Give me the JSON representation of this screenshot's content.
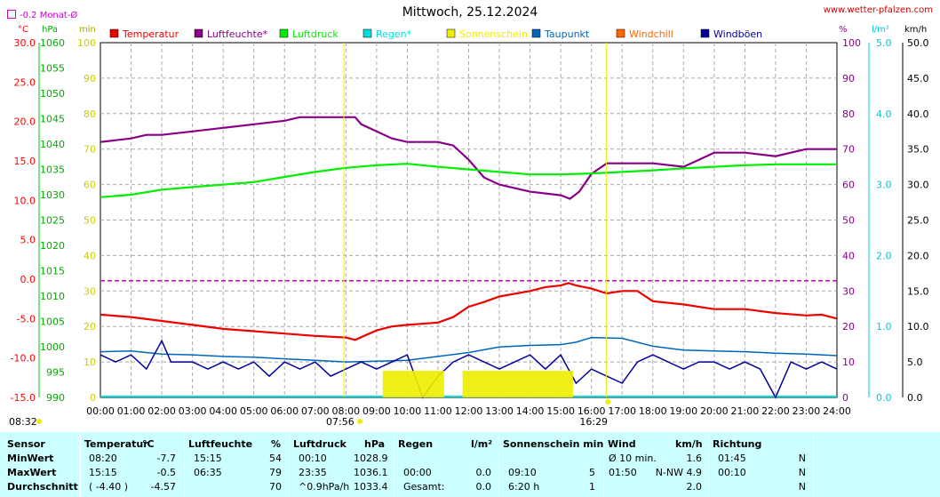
{
  "title": "Mittwoch, 25.12.2024",
  "site": "www.wetter-pfalzen.com",
  "monat_label": "-0.2 Monat-Ø",
  "unit_labels": {
    "celsius": "°C",
    "hpa": "hPa",
    "min": "min",
    "pct": "%",
    "lm2": "l/m²",
    "kmh": "km/h"
  },
  "chart_data": {
    "type": "line",
    "legend": [
      {
        "name": "Temperatur",
        "color": "#ee0000"
      },
      {
        "name": "Luftfeuchte*",
        "color": "#880088"
      },
      {
        "name": "Luftdruck",
        "color": "#00ee00"
      },
      {
        "name": "Regen*",
        "color": "#00dddd"
      },
      {
        "name": "Sonnenschein",
        "color": "#eeee00"
      },
      {
        "name": "Taupunkt",
        "color": "#0066bb"
      },
      {
        "name": "Windchill",
        "color": "#ff6600"
      },
      {
        "name": "Windböen",
        "color": "#000099"
      }
    ],
    "x_ticks": [
      "00:00",
      "01:00",
      "02:00",
      "03:00",
      "04:00",
      "05:00",
      "06:00",
      "07:00",
      "08:00",
      "09:00",
      "10:00",
      "11:00",
      "12:00",
      "13:00",
      "14:00",
      "15:00",
      "16:00",
      "17:00",
      "18:00",
      "19:00",
      "20:00",
      "21:00",
      "22:00",
      "23:00",
      "24:00"
    ],
    "sunrise": "07:56",
    "sunset": "16:29",
    "axes": {
      "temp": {
        "range": [
          -15,
          30
        ],
        "ticks": [
          "30.0",
          "25.0",
          "20.0",
          "15.0",
          "10.0",
          "5.0",
          "0.0",
          "-5.0",
          "-10.0",
          "-15.0"
        ]
      },
      "press": {
        "range": [
          990,
          1060
        ],
        "ticks": [
          "1060",
          "1055",
          "1050",
          "1045",
          "1040",
          "1035",
          "1030",
          "1025",
          "1020",
          "1015",
          "1010",
          "1005",
          "1000",
          "995",
          "990"
        ]
      },
      "minutes": {
        "range": [
          0,
          100
        ],
        "ticks": [
          "100",
          "90",
          "80",
          "70",
          "60",
          "50",
          "40",
          "30",
          "20",
          "10",
          "0"
        ]
      },
      "pct_right": {
        "range": [
          0,
          100
        ],
        "ticks": [
          "100",
          "90",
          "80",
          "70",
          "60",
          "50",
          "40",
          "30",
          "20",
          "10",
          "0"
        ]
      },
      "rain": {
        "range": [
          0,
          5
        ],
        "ticks": [
          "5.0",
          "4.0",
          "3.0",
          "2.0",
          "1.0",
          "0.0"
        ]
      },
      "wind": {
        "range": [
          0,
          50
        ],
        "ticks": [
          "50.0",
          "45.0",
          "40.0",
          "35.0",
          "30.0",
          "25.0",
          "20.0",
          "15.0",
          "10.0",
          "5.0",
          "0.0"
        ]
      }
    },
    "monat_avg_temp": -0.2,
    "series": [
      {
        "name": "Luftfeuchte*",
        "axis": "pct",
        "points": [
          [
            0,
            72
          ],
          [
            1,
            73
          ],
          [
            1.5,
            74
          ],
          [
            2,
            74
          ],
          [
            3,
            75
          ],
          [
            4,
            76
          ],
          [
            5,
            77
          ],
          [
            6,
            78
          ],
          [
            6.5,
            79
          ],
          [
            7,
            79
          ],
          [
            7.5,
            79
          ],
          [
            8,
            79
          ],
          [
            8.3,
            79
          ],
          [
            8.5,
            77
          ],
          [
            9,
            75
          ],
          [
            9.5,
            73
          ],
          [
            10,
            72
          ],
          [
            11,
            72
          ],
          [
            11.5,
            71
          ],
          [
            12,
            67
          ],
          [
            12.5,
            62
          ],
          [
            13,
            60
          ],
          [
            13.5,
            59
          ],
          [
            14,
            58
          ],
          [
            15,
            57
          ],
          [
            15.3,
            56
          ],
          [
            15.6,
            58
          ],
          [
            16,
            63
          ],
          [
            16.5,
            66
          ],
          [
            17,
            66
          ],
          [
            18,
            66
          ],
          [
            19,
            65
          ],
          [
            19.5,
            67
          ],
          [
            20,
            69
          ],
          [
            21,
            69
          ],
          [
            22,
            68
          ],
          [
            22.5,
            69
          ],
          [
            23,
            70
          ],
          [
            23.5,
            70
          ],
          [
            24,
            70
          ]
        ]
      },
      {
        "name": "Luftdruck",
        "axis": "press",
        "points": [
          [
            0,
            1029.5
          ],
          [
            1,
            1030
          ],
          [
            2,
            1031
          ],
          [
            3,
            1031.5
          ],
          [
            4,
            1032
          ],
          [
            5,
            1032.5
          ],
          [
            6,
            1033.5
          ],
          [
            7,
            1034.5
          ],
          [
            8,
            1035.3
          ],
          [
            9,
            1035.8
          ],
          [
            10,
            1036.1
          ],
          [
            11,
            1035.5
          ],
          [
            12,
            1035
          ],
          [
            13,
            1034.5
          ],
          [
            14,
            1034
          ],
          [
            15,
            1034
          ],
          [
            16,
            1034.2
          ],
          [
            17,
            1034.5
          ],
          [
            18,
            1034.8
          ],
          [
            19,
            1035.2
          ],
          [
            20,
            1035.5
          ],
          [
            21,
            1035.8
          ],
          [
            22,
            1036
          ],
          [
            23,
            1036
          ],
          [
            24,
            1036
          ]
        ]
      },
      {
        "name": "Temperatur",
        "axis": "temp",
        "points": [
          [
            0,
            -4.5
          ],
          [
            1,
            -4.8
          ],
          [
            2,
            -5.3
          ],
          [
            3,
            -5.8
          ],
          [
            4,
            -6.3
          ],
          [
            5,
            -6.6
          ],
          [
            6,
            -6.9
          ],
          [
            7,
            -7.2
          ],
          [
            8,
            -7.4
          ],
          [
            8.3,
            -7.7
          ],
          [
            9,
            -6.5
          ],
          [
            9.5,
            -6.0
          ],
          [
            10,
            -5.8
          ],
          [
            11,
            -5.5
          ],
          [
            11.5,
            -4.8
          ],
          [
            12,
            -3.5
          ],
          [
            12.5,
            -2.9
          ],
          [
            13,
            -2.2
          ],
          [
            14,
            -1.5
          ],
          [
            14.5,
            -1.0
          ],
          [
            15,
            -0.8
          ],
          [
            15.25,
            -0.5
          ],
          [
            15.5,
            -0.8
          ],
          [
            16,
            -1.2
          ],
          [
            16.5,
            -1.8
          ],
          [
            17,
            -1.5
          ],
          [
            17.5,
            -1.5
          ],
          [
            18,
            -2.8
          ],
          [
            19,
            -3.2
          ],
          [
            20,
            -3.8
          ],
          [
            21,
            -3.8
          ],
          [
            22,
            -4.3
          ],
          [
            23,
            -4.6
          ],
          [
            23.5,
            -4.5
          ],
          [
            24,
            -5.0
          ]
        ]
      },
      {
        "name": "Taupunkt",
        "axis": "temp",
        "points": [
          [
            0,
            -9.2
          ],
          [
            1,
            -9.1
          ],
          [
            2,
            -9.5
          ],
          [
            3,
            -9.6
          ],
          [
            4,
            -9.8
          ],
          [
            5,
            -9.9
          ],
          [
            6,
            -10.1
          ],
          [
            7,
            -10.3
          ],
          [
            8,
            -10.5
          ],
          [
            9,
            -10.4
          ],
          [
            10,
            -10.3
          ],
          [
            11,
            -9.8
          ],
          [
            12,
            -9.3
          ],
          [
            13,
            -8.6
          ],
          [
            14,
            -8.4
          ],
          [
            15,
            -8.3
          ],
          [
            15.5,
            -8.0
          ],
          [
            16,
            -7.4
          ],
          [
            17,
            -7.5
          ],
          [
            18,
            -8.5
          ],
          [
            19,
            -9.0
          ],
          [
            20,
            -9.1
          ],
          [
            21,
            -9.2
          ],
          [
            22,
            -9.4
          ],
          [
            23,
            -9.5
          ],
          [
            24,
            -9.7
          ]
        ]
      },
      {
        "name": "Windböen",
        "axis": "wind",
        "points": [
          [
            0,
            6
          ],
          [
            0.5,
            5
          ],
          [
            1,
            6
          ],
          [
            1.5,
            4
          ],
          [
            2,
            8
          ],
          [
            2.3,
            5
          ],
          [
            3,
            5
          ],
          [
            3.5,
            4
          ],
          [
            4,
            5
          ],
          [
            4.5,
            4
          ],
          [
            5,
            5
          ],
          [
            5.5,
            3
          ],
          [
            6,
            5
          ],
          [
            6.5,
            4
          ],
          [
            7,
            5
          ],
          [
            7.5,
            3
          ],
          [
            8,
            4
          ],
          [
            8.5,
            5
          ],
          [
            9,
            4
          ],
          [
            9.5,
            5
          ],
          [
            10,
            6
          ],
          [
            10.5,
            0
          ],
          [
            11,
            3
          ],
          [
            11.5,
            5
          ],
          [
            12,
            6
          ],
          [
            12.5,
            5
          ],
          [
            13,
            4
          ],
          [
            13.5,
            5
          ],
          [
            14,
            6
          ],
          [
            14.5,
            4
          ],
          [
            15,
            6
          ],
          [
            15.5,
            2
          ],
          [
            16,
            4
          ],
          [
            16.5,
            3
          ],
          [
            17,
            2
          ],
          [
            17.5,
            5
          ],
          [
            18,
            6
          ],
          [
            18.5,
            5
          ],
          [
            19,
            4
          ],
          [
            19.5,
            5
          ],
          [
            20,
            5
          ],
          [
            20.5,
            4
          ],
          [
            21,
            5
          ],
          [
            21.5,
            4
          ],
          [
            22,
            0
          ],
          [
            22.5,
            5
          ],
          [
            23,
            4
          ],
          [
            23.5,
            5
          ],
          [
            24,
            4
          ]
        ]
      },
      {
        "name": "Sonnenschein",
        "axis": "minutes",
        "blocks": [
          [
            9.2,
            11.2,
            5
          ],
          [
            11.8,
            15.4,
            5
          ]
        ]
      }
    ]
  },
  "table": {
    "headers": [
      "Sensor",
      "Temperatur",
      "°C",
      "Luftfeuchte",
      "%",
      "Luftdruck",
      "hPa",
      "Regen",
      "l/m²",
      "Sonnenschein min",
      "Wind",
      "km/h",
      "Richtung"
    ],
    "rows": [
      {
        "label": "MinWert",
        "temp_time": "08:20",
        "temp_val": "-7.7",
        "hum_time": "15:15",
        "hum_val": "54",
        "press_time": "00:10",
        "press_val": "1028.9",
        "rain_time": "",
        "rain_val": "",
        "sun_time": "",
        "sun_val": "",
        "wind_time": "Ø 10 min.",
        "wind_val": "1.6",
        "dir_time": "01:45",
        "dir_val": "N"
      },
      {
        "label": "MaxWert",
        "temp_time": "15:15",
        "temp_val": "-0.5",
        "hum_time": "06:35",
        "hum_val": "79",
        "press_time": "23:35",
        "press_val": "1036.1",
        "rain_time": "00:00",
        "rain_val": "0.0",
        "sun_time": "09:10",
        "sun_val": "5",
        "wind_time": "01:50",
        "wind_val": "N-NW 4.9",
        "dir_time": "00:10",
        "dir_val": "N"
      },
      {
        "label": "Durchschnitt",
        "temp_time": "( -4.40 )",
        "temp_val": "-4.57",
        "hum_time": "",
        "hum_val": "70",
        "press_time": "^0.9hPa/h",
        "press_val": "1033.4",
        "rain_time": "Gesamt:",
        "rain_val": "0.0",
        "sun_time": "6:20 h",
        "sun_val": "1",
        "wind_time": "",
        "wind_val": "2.0",
        "dir_time": "",
        "dir_val": "N"
      }
    ]
  }
}
